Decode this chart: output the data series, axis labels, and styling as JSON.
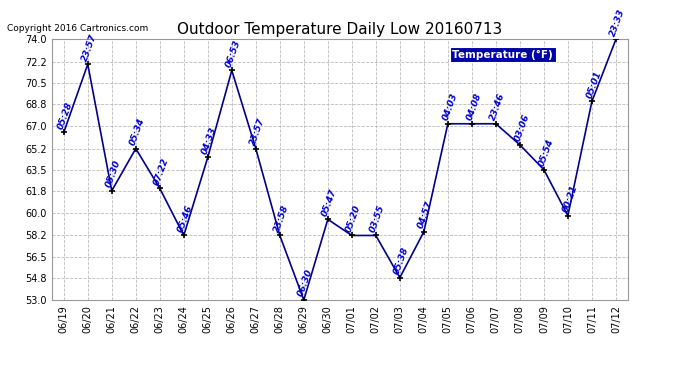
{
  "title": "Outdoor Temperature Daily Low 20160713",
  "copyright": "Copyright 2016 Cartronics.com",
  "legend_label": "Temperature (°F)",
  "background_color": "#ffffff",
  "plot_bg_color": "#ffffff",
  "line_color": "#00008b",
  "marker_color": "#000000",
  "text_color": "#0000cd",
  "ylim": [
    53.0,
    74.0
  ],
  "yticks": [
    53.0,
    54.8,
    56.5,
    58.2,
    60.0,
    61.8,
    63.5,
    65.2,
    67.0,
    68.8,
    70.5,
    72.2,
    74.0
  ],
  "dates": [
    "06/19",
    "06/20",
    "06/21",
    "06/22",
    "06/23",
    "06/24",
    "06/25",
    "06/26",
    "06/27",
    "06/28",
    "06/29",
    "06/30",
    "07/01",
    "07/02",
    "07/03",
    "07/04",
    "07/05",
    "07/06",
    "07/07",
    "07/08",
    "07/09",
    "07/10",
    "07/11",
    "07/12"
  ],
  "temperatures": [
    66.5,
    72.0,
    61.8,
    65.2,
    62.0,
    58.2,
    64.5,
    71.5,
    65.2,
    58.2,
    53.0,
    59.5,
    58.2,
    58.2,
    54.8,
    58.5,
    67.2,
    67.2,
    67.2,
    65.5,
    63.5,
    59.8,
    69.0,
    74.0
  ],
  "time_labels": [
    "05:28",
    "23:57",
    "05:30",
    "05:34",
    "07:22",
    "05:46",
    "04:33",
    "06:53",
    "23:57",
    "23:58",
    "06:30",
    "05:47",
    "05:20",
    "03:55",
    "05:38",
    "04:57",
    "04:03",
    "04:08",
    "23:46",
    "03:06",
    "05:54",
    "00:21",
    "05:01",
    "23:33"
  ],
  "grid_color": "#bbbbbb",
  "legend_bg": "#0000aa",
  "legend_text": "#ffffff",
  "title_fontsize": 11,
  "tick_fontsize": 7,
  "label_fontsize": 6.5
}
